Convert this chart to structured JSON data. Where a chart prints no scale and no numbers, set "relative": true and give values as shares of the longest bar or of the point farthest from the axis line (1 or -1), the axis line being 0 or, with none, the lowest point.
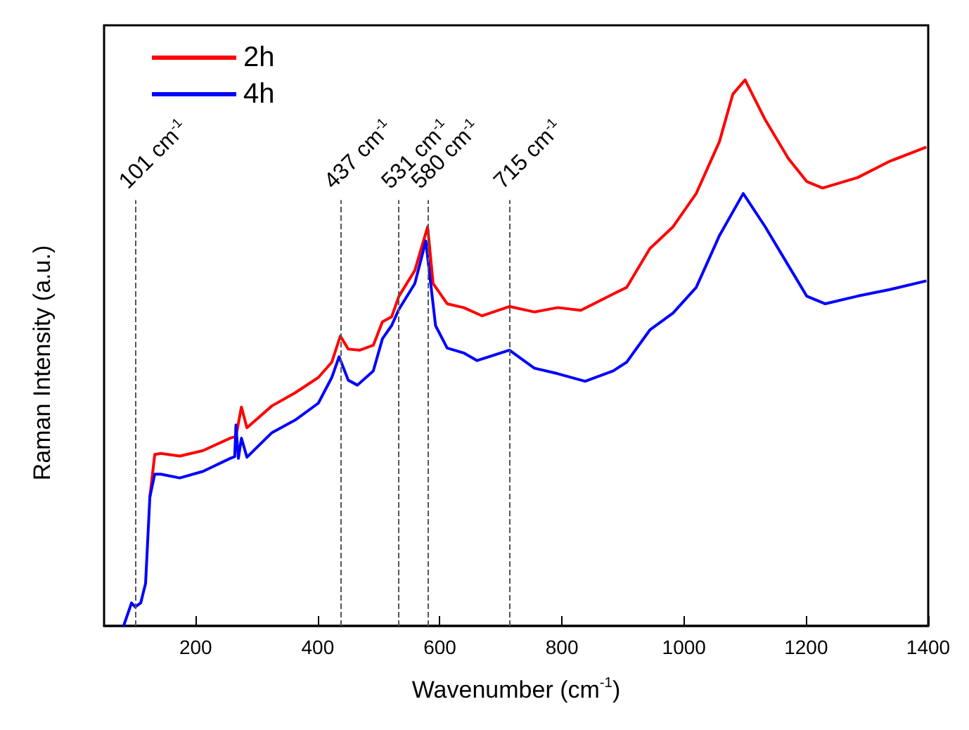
{
  "chart_data": {
    "type": "line",
    "relative": true,
    "xlabel": "Wavenumber (cm$^{-1}$)",
    "ylabel": "Raman Intensity (a.u.)",
    "xlim": [
      50,
      1400
    ],
    "xticks": [
      200,
      400,
      600,
      800,
      1000,
      1200,
      1400
    ],
    "legend": "top left",
    "series": [
      {
        "name": "2h",
        "color": "#ff0000",
        "x": [
          125,
          133,
          143,
          174,
          212,
          257,
          266,
          275,
          284,
          325,
          363,
          401,
          423,
          437,
          450,
          469,
          491,
          506,
          521,
          533,
          559,
          580,
          589,
          612,
          639,
          669,
          714,
          755,
          793,
          831,
          884,
          906,
          944,
          982,
          1020,
          1058,
          1080,
          1100,
          1133,
          1171,
          1201,
          1227,
          1284,
          1337,
          1397
        ],
        "values": [
          0.236,
          0.314,
          0.316,
          0.311,
          0.321,
          0.344,
          0.347,
          0.401,
          0.363,
          0.403,
          0.427,
          0.455,
          0.483,
          0.531,
          0.507,
          0.505,
          0.514,
          0.557,
          0.566,
          0.604,
          0.651,
          0.731,
          0.627,
          0.59,
          0.583,
          0.568,
          0.585,
          0.575,
          0.583,
          0.578,
          0.608,
          0.62,
          0.691,
          0.731,
          0.792,
          0.887,
          0.974,
          1,
          0.927,
          0.856,
          0.814,
          0.802,
          0.821,
          0.851,
          0.877
        ]
      },
      {
        "name": "4h",
        "color": "#0000ff",
        "x": [
          82,
          95,
          101,
          110,
          118,
          125,
          133,
          143,
          174,
          212,
          257,
          264,
          266,
          270,
          275,
          284,
          325,
          363,
          401,
          423,
          435,
          450,
          465,
          491,
          506,
          521,
          533,
          559,
          577,
          593,
          612,
          639,
          661,
          714,
          755,
          793,
          838,
          884,
          906,
          944,
          982,
          1020,
          1058,
          1097,
          1133,
          1171,
          1201,
          1231,
          1284,
          1337,
          1397
        ],
        "values": [
          0,
          0.042,
          0.035,
          0.042,
          0.078,
          0.236,
          0.278,
          0.278,
          0.271,
          0.283,
          0.307,
          0.31,
          0.368,
          0.307,
          0.344,
          0.309,
          0.354,
          0.377,
          0.408,
          0.455,
          0.493,
          0.45,
          0.441,
          0.467,
          0.526,
          0.55,
          0.58,
          0.627,
          0.705,
          0.55,
          0.509,
          0.5,
          0.486,
          0.505,
          0.472,
          0.462,
          0.448,
          0.467,
          0.483,
          0.542,
          0.573,
          0.62,
          0.715,
          0.792,
          0.731,
          0.66,
          0.604,
          0.59,
          0.604,
          0.616,
          0.632
        ]
      }
    ],
    "ref_lines": [
      {
        "axis": "x",
        "value": 101,
        "label": "101 cm$^{-1}$",
        "line_style": "dashed"
      },
      {
        "axis": "x",
        "value": 437,
        "label": "437 cm$^{-1}$",
        "line_style": "dashed"
      },
      {
        "axis": "x",
        "value": 531,
        "label": "531 cm$^{-1}$",
        "line_style": "dashed"
      },
      {
        "axis": "x",
        "value": 580,
        "label": "580 cm$^{-1}$",
        "line_style": "dashed"
      },
      {
        "axis": "x",
        "value": 715,
        "label": "715 cm$^{-1}$",
        "line_style": "dashed"
      }
    ]
  }
}
